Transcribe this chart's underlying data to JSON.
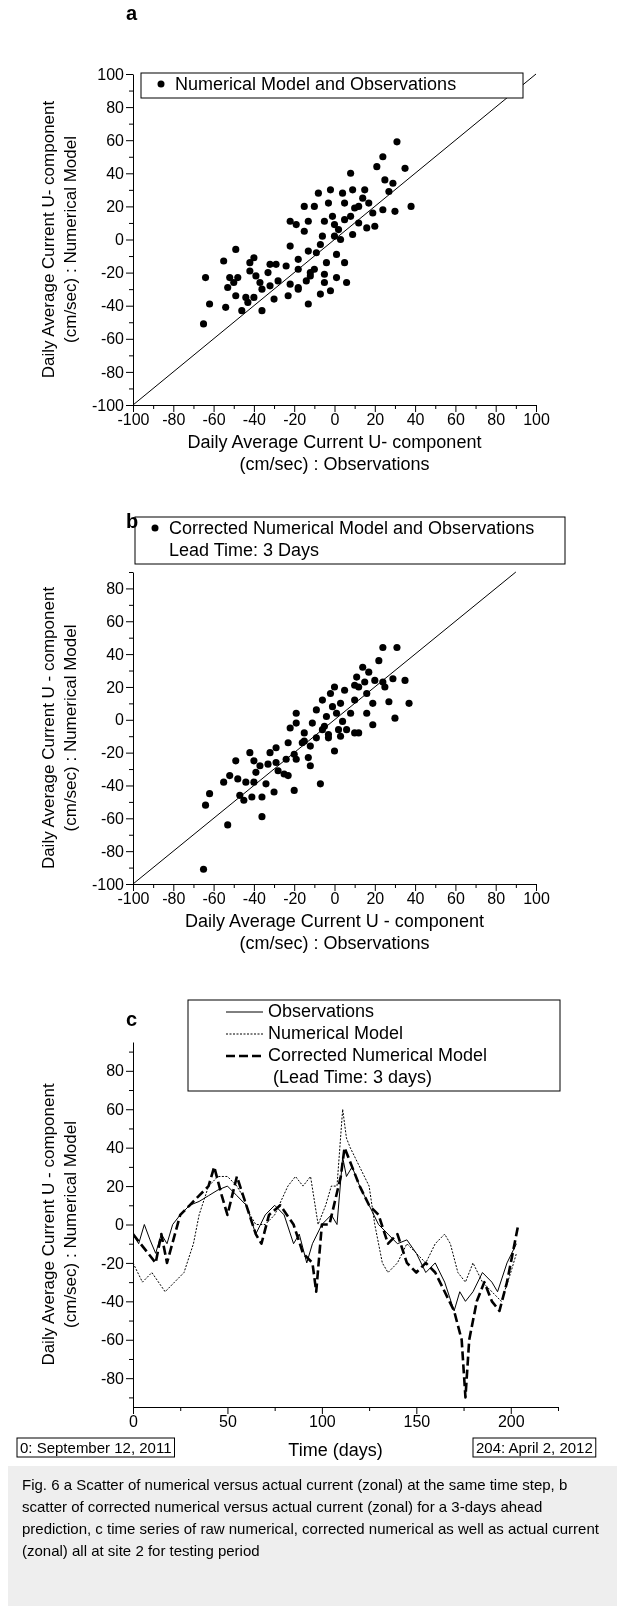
{
  "chart_data": [
    {
      "type": "scatter",
      "xlabel": "Daily Average Current U- component\n(cm/sec) : Observations",
      "ylabel": "Daily Average Current U- component\n(cm/sec) : Numerical Model",
      "annotations": [
        "a"
      ],
      "xlim": [
        -100,
        100
      ],
      "ylim": [
        -100,
        100
      ],
      "xticks": [
        -100,
        {
          "value": -90,
          "label": null
        },
        -80,
        {
          "value": -70,
          "label": null
        },
        -60,
        {
          "value": -50,
          "label": null
        },
        -40,
        {
          "value": -30,
          "label": null
        },
        -20,
        {
          "value": -10,
          "label": null
        },
        0,
        {
          "value": 10,
          "label": null
        },
        20,
        {
          "value": 30,
          "label": null
        },
        40,
        {
          "value": 50,
          "label": null
        },
        60,
        {
          "value": 70,
          "label": null
        },
        80,
        {
          "value": 90,
          "label": null
        },
        100
      ],
      "yticks": [
        -100,
        {
          "value": -90,
          "label": null
        },
        -80,
        {
          "value": -70,
          "label": null
        },
        -60,
        {
          "value": -50,
          "label": null
        },
        -40,
        {
          "value": -30,
          "label": null
        },
        -20,
        {
          "value": -10,
          "label": null
        },
        0,
        {
          "value": 10,
          "label": null
        },
        20,
        {
          "value": 30,
          "label": null
        },
        40,
        {
          "value": 50,
          "label": null
        },
        60,
        {
          "value": 70,
          "label": null
        },
        80,
        {
          "value": 90,
          "label": null
        },
        100
      ],
      "legend": "top",
      "grid": false,
      "series": [
        {
          "name": "Numerical Model and Observations",
          "marker": "circle",
          "color": "#000000",
          "x": [
            31,
            24,
            21,
            35,
            8,
            25,
            29,
            27,
            -8,
            -2,
            4,
            9,
            15,
            38,
            24,
            30,
            -15,
            -10,
            -3,
            5,
            12,
            17,
            19,
            -22,
            -19,
            -13,
            -15,
            -5,
            0,
            5,
            9,
            12,
            16,
            20,
            -6,
            0,
            3,
            -22,
            -13,
            -7,
            -49,
            -55,
            -40,
            -42,
            -32,
            -29,
            -24,
            -18,
            -9,
            1,
            5,
            -4,
            -64,
            -52,
            -48,
            -42,
            -39,
            -33,
            -50,
            -53,
            -37,
            -32,
            -28,
            -22,
            -18,
            -14,
            -10,
            -5,
            1,
            6,
            -62,
            -54,
            -49,
            -44,
            -40,
            -30,
            -23,
            -13,
            -7,
            -2,
            -46,
            -36,
            -65,
            -18,
            -12,
            -18,
            -36,
            -43,
            -5,
            -1,
            2,
            8,
            -12,
            10,
            14
          ],
          "values": [
            59,
            50,
            44,
            43,
            40,
            36,
            34,
            29,
            28,
            30,
            28,
            30,
            30,
            20,
            18,
            17,
            20,
            20,
            22,
            22,
            20,
            22,
            16,
            11,
            9,
            11,
            5,
            11,
            9,
            12,
            3,
            10,
            7,
            8,
            2,
            2,
            0,
            -4,
            -7,
            -3,
            -6,
            -13,
            -11,
            -14,
            -15,
            -15,
            -16,
            -12,
            -8,
            -9,
            -14,
            -14,
            -23,
            -23,
            -23,
            -19,
            -22,
            -20,
            -26,
            -29,
            -26,
            -28,
            -25,
            -27,
            -29,
            -25,
            -18,
            -21,
            -23,
            -26,
            -39,
            -41,
            -34,
            -35,
            -35,
            -36,
            -34,
            -39,
            -33,
            -31,
            -43,
            -43,
            -51,
            -18,
            -22,
            -30,
            -30,
            -38,
            -26,
            14,
            6,
            14,
            -20,
            19,
            25
          ]
        },
        {
          "type": "line",
          "color": "#000000",
          "line_style": "solid",
          "x": [
            -100,
            100
          ],
          "values": [
            -100,
            100
          ]
        }
      ]
    },
    {
      "type": "scatter",
      "xlabel": "Daily Average Current U - component\n(cm/sec) : Observations",
      "ylabel": "Daily Average Current U - component\n(cm/sec) : Numerical Model",
      "annotations": [
        "b"
      ],
      "xlim": [
        -100,
        100
      ],
      "ylim": [
        -100,
        90
      ],
      "xticks": [
        -100,
        {
          "value": -90,
          "label": null
        },
        -80,
        {
          "value": -70,
          "label": null
        },
        -60,
        {
          "value": -50,
          "label": null
        },
        -40,
        {
          "value": -30,
          "label": null
        },
        -20,
        {
          "value": -10,
          "label": null
        },
        0,
        {
          "value": 10,
          "label": null
        },
        20,
        {
          "value": 30,
          "label": null
        },
        40,
        {
          "value": 50,
          "label": null
        },
        60,
        {
          "value": 70,
          "label": null
        },
        80,
        {
          "value": 90,
          "label": null
        },
        100
      ],
      "yticks": [
        -100,
        {
          "value": -90,
          "label": null
        },
        -80,
        {
          "value": -70,
          "label": null
        },
        -60,
        {
          "value": -50,
          "label": null
        },
        -40,
        {
          "value": -30,
          "label": null
        },
        -20,
        {
          "value": -10,
          "label": null
        },
        0,
        {
          "value": 10,
          "label": null
        },
        20,
        {
          "value": 30,
          "label": null
        },
        40,
        {
          "value": 50,
          "label": null
        },
        60,
        {
          "value": 70,
          "label": null
        },
        80,
        {
          "value": 90,
          "label": null
        }
      ],
      "legend": "top",
      "grid": false,
      "series": [
        {
          "name": "Corrected Numerical Model and Observations\nLead Time: 3 Days",
          "marker": "circle",
          "color": "#000000",
          "x": [
            -65,
            -53,
            -36,
            -7,
            -64,
            -62,
            -55,
            -52,
            -49,
            -48,
            -47,
            -45,
            -44,
            -42,
            -41,
            -40,
            -39,
            -37,
            -36,
            -34,
            -33,
            -32,
            -30,
            -29,
            -28,
            -25,
            -23,
            -24,
            -22,
            -23,
            -20,
            -20,
            -19,
            -19,
            -16,
            -15,
            -13,
            -12,
            -12,
            -11,
            -9,
            -6,
            -6,
            -4,
            -3,
            -2,
            0,
            0,
            1,
            2,
            3,
            4,
            5,
            6,
            8,
            10,
            11,
            12,
            12,
            14,
            15,
            16,
            16,
            17,
            19,
            19,
            20,
            22,
            24,
            24,
            25,
            27,
            29,
            31,
            30,
            35,
            37,
            10,
            10,
            -5,
            -9,
            -15,
            -19,
            -1,
            3,
            -3,
            -40,
            -29
          ],
          "values": [
            -91,
            -64,
            -59,
            -39,
            -52,
            -45,
            -38,
            -34,
            -25,
            -36,
            -46,
            -49,
            -38,
            -20,
            -47,
            -25,
            -32,
            -28,
            -47,
            -39,
            -27,
            -20,
            -44,
            -17,
            -31,
            -33,
            -34,
            -24,
            -5,
            -14,
            -21,
            -43,
            4,
            -24,
            -14,
            -8,
            -23,
            -28,
            -16,
            -2,
            6,
            -6,
            12,
            2,
            -11,
            16,
            20,
            -19,
            4,
            -6,
            10,
            -1,
            18,
            -6,
            4,
            12,
            26,
            20,
            -8,
            32,
            23,
            16,
            4,
            29,
            -3,
            10,
            24,
            36,
            44,
            23,
            20,
            11,
            25,
            44,
            1,
            24,
            10,
            -8,
            21,
            -4,
            -11,
            -13,
            -2,
            8,
            -10,
            -9,
            -38,
            -26
          ]
        },
        {
          "type": "line",
          "color": "#000000",
          "line_style": "solid",
          "x": [
            -100,
            90
          ],
          "values": [
            -100,
            90
          ]
        }
      ]
    },
    {
      "type": "line",
      "xlabel": "Time (days)",
      "ylabel": "Daily Average Current U - component\n(cm/sec) : Numerical Model",
      "annotations": [
        "c",
        "0: September 12, 2011",
        "204: April 2, 2012",
        "Fig. 6 a Scatter of numerical versus actual current (zonal) at the same time step, b scatter of corrected numerical versus actual current (zonal) for a 3-days ahead prediction, c time series of raw numerical, corrected numerical as well as actual current (zonal) all at site 2 for testing period"
      ],
      "xlim": [
        0,
        225
      ],
      "ylim": [
        -95,
        95
      ],
      "xticks": [
        0,
        {
          "value": 25,
          "label": null
        },
        50,
        {
          "value": 75,
          "label": null
        },
        100,
        {
          "value": 125,
          "label": null
        },
        150,
        {
          "value": 175,
          "label": null
        },
        200,
        {
          "value": 225,
          "label": null
        }
      ],
      "yticks": [
        {
          "value": -90,
          "label": null
        },
        -80,
        {
          "value": -70,
          "label": null
        },
        -60,
        {
          "value": -50,
          "label": null
        },
        -40,
        {
          "value": -30,
          "label": null
        },
        -20,
        {
          "value": -10,
          "label": null
        },
        0,
        {
          "value": 10,
          "label": null
        },
        20,
        {
          "value": 30,
          "label": null
        },
        40,
        {
          "value": 50,
          "label": null
        },
        60,
        {
          "value": 70,
          "label": null
        },
        80,
        {
          "value": 90,
          "label": null
        }
      ],
      "legend": "top",
      "grid": false,
      "series": [
        {
          "name": "Observations",
          "color": "#000000",
          "line_style": "solid",
          "x": [
            0,
            3,
            6,
            9,
            12,
            15,
            18,
            21,
            25,
            30,
            35,
            40,
            45,
            50,
            55,
            60,
            65,
            70,
            75,
            80,
            85,
            88,
            92,
            95,
            100,
            105,
            108,
            111,
            113,
            116,
            120,
            125,
            130,
            135,
            140,
            145,
            150,
            155,
            160,
            165,
            170,
            173,
            176,
            180,
            185,
            190,
            193,
            198,
            203
          ],
          "values": [
            -5,
            -10,
            0,
            -8,
            -15,
            -5,
            -10,
            0,
            5,
            10,
            12,
            15,
            18,
            20,
            15,
            10,
            -5,
            5,
            10,
            5,
            -10,
            -5,
            -20,
            -10,
            0,
            5,
            0,
            35,
            25,
            30,
            20,
            10,
            0,
            -5,
            -10,
            -8,
            -15,
            -25,
            -20,
            -30,
            -45,
            -35,
            -40,
            -35,
            -25,
            -30,
            -35,
            -20,
            -10
          ]
        },
        {
          "name": "Numerical Model",
          "color": "#000000",
          "line_style": "dotted",
          "x": [
            0,
            5,
            10,
            17,
            22,
            27,
            32,
            35,
            40,
            45,
            50,
            55,
            58,
            62,
            65,
            70,
            75,
            82,
            86,
            90,
            94,
            98,
            102,
            105,
            108,
            111,
            113,
            115,
            120,
            125,
            128,
            132,
            135,
            140,
            145,
            150,
            155,
            160,
            165,
            168,
            172,
            176,
            180,
            185,
            190,
            195,
            200,
            203
          ],
          "values": [
            -20,
            -30,
            -25,
            -35,
            -30,
            -25,
            -10,
            5,
            20,
            25,
            25,
            20,
            15,
            5,
            0,
            0,
            5,
            20,
            25,
            20,
            25,
            0,
            10,
            20,
            20,
            60,
            45,
            40,
            30,
            20,
            0,
            -20,
            -25,
            -20,
            -10,
            -15,
            -20,
            -10,
            -5,
            -10,
            -25,
            -30,
            -20,
            -30,
            -35,
            -40,
            -25,
            -15
          ]
        },
        {
          "name": "Corrected Numerical Model\n (Lead Time: 3 days)",
          "color": "#000000",
          "line_style": "dashed",
          "x": [
            0,
            4,
            8,
            12,
            15,
            18,
            25,
            30,
            35,
            40,
            43,
            47,
            50,
            55,
            60,
            65,
            68,
            72,
            78,
            85,
            90,
            95,
            97,
            100,
            104,
            110,
            112,
            116,
            120,
            125,
            130,
            135,
            140,
            145,
            150,
            155,
            160,
            165,
            170,
            174,
            176,
            178,
            182,
            186,
            190,
            194,
            198,
            202,
            204
          ],
          "values": [
            -5,
            -10,
            -15,
            -20,
            -5,
            -20,
            5,
            10,
            15,
            20,
            30,
            15,
            5,
            25,
            10,
            -5,
            -10,
            5,
            10,
            0,
            -15,
            -20,
            -35,
            0,
            0,
            25,
            40,
            30,
            20,
            10,
            5,
            -10,
            -5,
            -20,
            -25,
            -20,
            -25,
            -35,
            -45,
            -60,
            -90,
            -60,
            -40,
            -30,
            -40,
            -45,
            -30,
            -10,
            0
          ]
        }
      ]
    }
  ]
}
